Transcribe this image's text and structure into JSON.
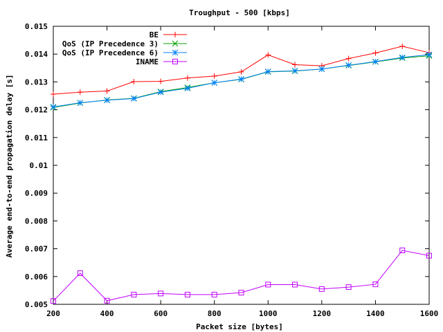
{
  "chart_data": {
    "type": "line",
    "title": "Troughput - 500 [kbps]",
    "xlabel": "Packet size [bytes]",
    "ylabel": "Average end-to-end propagation delay [s]",
    "xlim": [
      200,
      1600
    ],
    "ylim": [
      0.005,
      0.015
    ],
    "grid": false,
    "legend_position": "top-left",
    "x_ticks": [
      200,
      400,
      600,
      800,
      1000,
      1200,
      1400,
      1600
    ],
    "x_tick_labels": [
      "200",
      "400",
      "600",
      "800",
      "1000",
      "1200",
      "1400",
      "1600"
    ],
    "y_ticks": [
      0.005,
      0.006,
      0.007,
      0.008,
      0.009,
      0.01,
      0.011,
      0.012,
      0.013,
      0.014,
      0.015
    ],
    "y_tick_labels": [
      "0.005",
      "0.006",
      "0.007",
      "0.008",
      "0.009",
      "0.01",
      "0.011",
      "0.012",
      "0.013",
      "0.014",
      "0.015"
    ],
    "x": [
      200,
      300,
      400,
      500,
      600,
      700,
      800,
      900,
      1000,
      1100,
      1200,
      1300,
      1400,
      1500,
      1600
    ],
    "series": [
      {
        "name": "BE",
        "color": "#ff0000",
        "marker": "plus",
        "values": [
          0.01256,
          0.01263,
          0.01267,
          0.01301,
          0.01302,
          0.01314,
          0.01321,
          0.01336,
          0.01397,
          0.01362,
          0.01358,
          0.01384,
          0.01404,
          0.01428,
          0.01405
        ]
      },
      {
        "name": "QoS (IP Precedence 3)",
        "color": "#00a000",
        "marker": "x",
        "values": [
          0.01208,
          0.01224,
          0.01235,
          0.01241,
          0.01265,
          0.0128,
          0.01297,
          0.01309,
          0.01336,
          0.01339,
          0.01346,
          0.01359,
          0.01372,
          0.01386,
          0.01394
        ]
      },
      {
        "name": "QoS (IP Precedence 6)",
        "color": "#0080ff",
        "marker": "star",
        "values": [
          0.0121,
          0.01225,
          0.01234,
          0.0124,
          0.01263,
          0.01277,
          0.01297,
          0.0131,
          0.01337,
          0.0134,
          0.01346,
          0.0136,
          0.01373,
          0.01388,
          0.01398
        ]
      },
      {
        "name": "INAME",
        "color": "#c000ff",
        "marker": "square",
        "values": [
          0.00512,
          0.00612,
          0.00513,
          0.00535,
          0.00539,
          0.00535,
          0.00535,
          0.00542,
          0.00571,
          0.00571,
          0.00555,
          0.00562,
          0.00572,
          0.00694,
          0.00675
        ]
      }
    ]
  }
}
